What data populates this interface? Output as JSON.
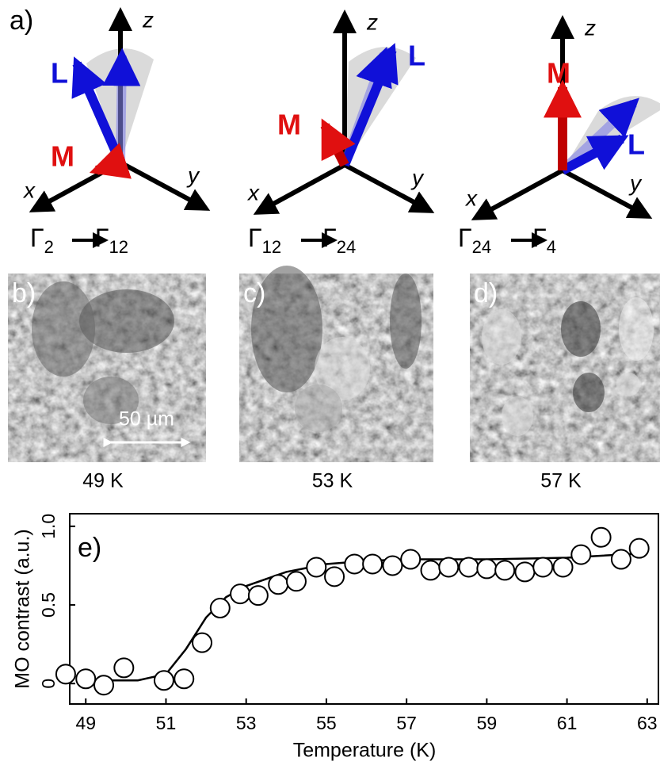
{
  "panel_a": {
    "label": "a)",
    "diagrams": [
      {
        "z": "z",
        "x": "x",
        "y": "y",
        "L": "L",
        "M": "M",
        "from": "Γ",
        "from_sub": "2",
        "to": "Γ",
        "to_sub": "12"
      },
      {
        "z": "z",
        "x": "x",
        "y": "y",
        "L": "L",
        "M": "M",
        "from": "Γ",
        "from_sub": "12",
        "to": "Γ",
        "to_sub": "24"
      },
      {
        "z": "z",
        "x": "x",
        "y": "y",
        "L": "L",
        "M": "M",
        "from": "Γ",
        "from_sub": "24",
        "to": "Γ",
        "to_sub": "4"
      }
    ]
  },
  "images": [
    {
      "label": "b)",
      "caption": "49 K",
      "scale_bar": "50 µm"
    },
    {
      "label": "c)",
      "caption": "53 K"
    },
    {
      "label": "d)",
      "caption": "57 K"
    }
  ],
  "chart_data": {
    "type": "scatter",
    "panel_label": "e)",
    "xlabel": "Temperature (K)",
    "ylabel": "MO contrast (a.u.)",
    "x": [
      48.5,
      49.0,
      49.45,
      49.95,
      50.95,
      51.45,
      51.9,
      52.35,
      52.85,
      53.3,
      53.8,
      54.25,
      54.75,
      55.2,
      55.7,
      56.15,
      56.65,
      57.1,
      57.6,
      58.05,
      58.55,
      59.0,
      59.45,
      59.95,
      60.4,
      60.9,
      61.35,
      61.85,
      62.35,
      62.8
    ],
    "series": [
      {
        "color": "#000000",
        "values": [
          0.06,
          0.03,
          -0.01,
          0.1,
          0.02,
          0.03,
          0.26,
          0.48,
          0.57,
          0.56,
          0.63,
          0.65,
          0.74,
          0.68,
          0.76,
          0.76,
          0.75,
          0.79,
          0.72,
          0.74,
          0.74,
          0.73,
          0.72,
          0.71,
          0.74,
          0.74,
          0.82,
          0.93,
          0.79,
          0.86
        ]
      }
    ],
    "fit": {
      "x": [
        49.5,
        50.3,
        51.0,
        51.5,
        52.0,
        52.5,
        53.0,
        54.0,
        55.0,
        56.0,
        57.0,
        59.0,
        61.0,
        63.0
      ],
      "values": [
        0.02,
        0.02,
        0.06,
        0.22,
        0.42,
        0.55,
        0.62,
        0.71,
        0.76,
        0.78,
        0.79,
        0.79,
        0.8,
        0.83
      ],
      "color": "#000000"
    },
    "xlim": [
      48.6,
      63.3
    ],
    "ylim": [
      -0.13,
      1.08
    ],
    "xticks": [
      49,
      51,
      53,
      55,
      57,
      59,
      61,
      63
    ],
    "yticks": [
      0,
      0.5,
      {
        "value": 1,
        "label": "1.0"
      }
    ]
  }
}
